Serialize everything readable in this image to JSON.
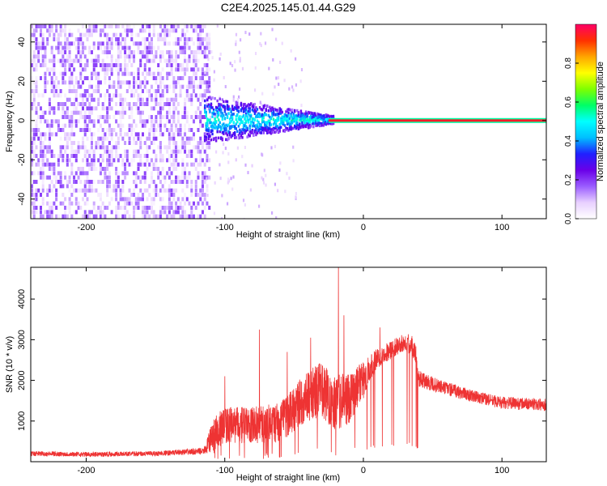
{
  "title": "C2E4.2025.145.01.44.G29",
  "chart_data": [
    {
      "type": "heatmap",
      "xlabel": "Height of straight line (km)",
      "ylabel": "Frequency (Hz)",
      "xlim": [
        -240,
        132
      ],
      "ylim": [
        -50,
        49
      ],
      "xticks": [
        -200,
        -100,
        0,
        100
      ],
      "yticks": [
        -40,
        -20,
        0,
        20,
        40
      ],
      "colorbar": {
        "label": "Normalized spectral amplitude",
        "range": [
          0,
          1
        ],
        "ticks": [
          0.0,
          0.2,
          0.4,
          0.6,
          0.8
        ],
        "tick_labels": [
          "0.0",
          "0.2",
          "0.4",
          "0.6",
          "0.8"
        ],
        "colors": [
          "#ffffff",
          "#e8d0ff",
          "#9a5cff",
          "#6a00e8",
          "#2020ff",
          "#00bfff",
          "#00ffff",
          "#00ff66",
          "#7fff00",
          "#ffff00",
          "#ffa500",
          "#ff3000",
          "#ff0066"
        ]
      },
      "regions": [
        {
          "desc": "broadband noise",
          "x": [
            -240,
            -112
          ],
          "y": [
            -50,
            49
          ],
          "amplitude": 0.1
        },
        {
          "desc": "signal spreading",
          "x": [
            -115,
            -22
          ],
          "y_center": 0,
          "y_half_width_at_start": 12,
          "y_half_width_at_end": 2,
          "amplitude": 0.35
        },
        {
          "desc": "carrier line",
          "x": [
            -25,
            132
          ],
          "y": 0,
          "amplitude": 0.95
        }
      ]
    },
    {
      "type": "line",
      "xlabel": "Height of straight line (km)",
      "ylabel": "SNR (10 * v/v)",
      "xlim": [
        -240,
        132
      ],
      "ylim": [
        0,
        4780
      ],
      "xticks": [
        -200,
        -100,
        0,
        100
      ],
      "yticks": [
        1000,
        2000,
        3000,
        4000
      ],
      "color": "#ee3333",
      "x": [
        -240,
        -200,
        -150,
        -115,
        -108,
        -100,
        -80,
        -60,
        -45,
        -30,
        -20,
        -10,
        0,
        10,
        20,
        30,
        37,
        40,
        50,
        60,
        80,
        100,
        132
      ],
      "y": [
        200,
        180,
        200,
        260,
        650,
        900,
        900,
        950,
        1500,
        1800,
        1400,
        1600,
        2000,
        2550,
        2750,
        2950,
        2800,
        2050,
        1900,
        1800,
        1600,
        1450,
        1400
      ],
      "noise": [
        60,
        60,
        60,
        80,
        450,
        450,
        450,
        500,
        600,
        700,
        700,
        650,
        450,
        250,
        220,
        220,
        300,
        200,
        180,
        170,
        150,
        150,
        150
      ],
      "spikes": [
        {
          "x": -100,
          "y": 2100
        },
        {
          "x": -75,
          "y": 3250
        },
        {
          "x": -55,
          "y": 2700
        },
        {
          "x": -38,
          "y": 3050
        },
        {
          "x": -18,
          "y": 4780
        },
        {
          "x": -14,
          "y": 3600
        },
        {
          "x": 12,
          "y": 3300
        }
      ]
    }
  ]
}
